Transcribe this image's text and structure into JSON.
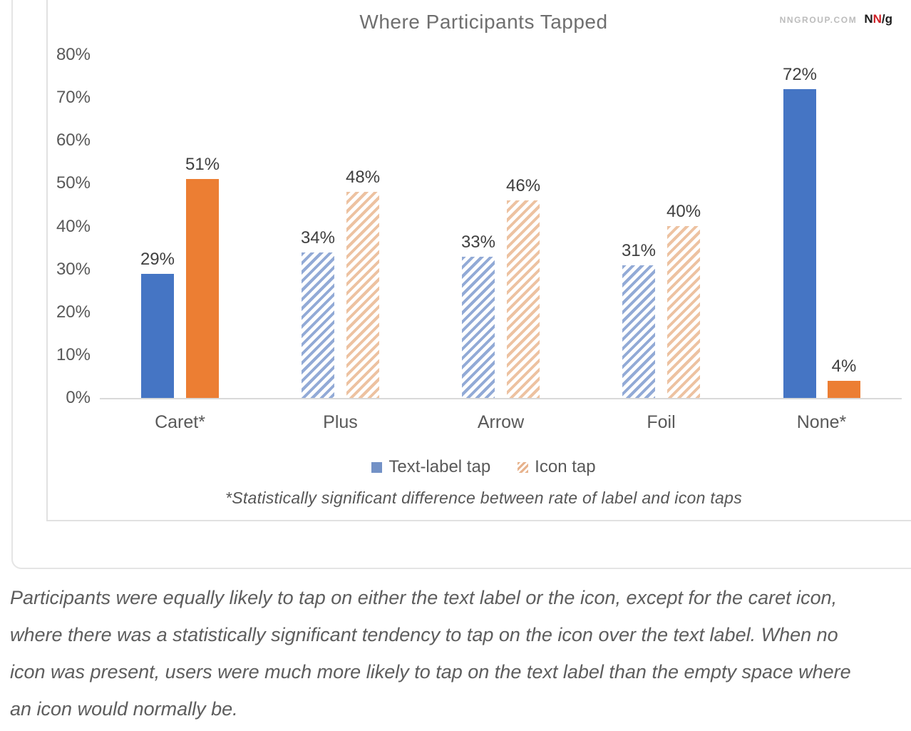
{
  "chart": {
    "title": "Where Participants Tapped",
    "brand": {
      "site": "NNGROUP.COM",
      "n1": "N",
      "n2": "N",
      "slash_g": "/g"
    },
    "footnote": "*Statistically significant difference between rate of label and icon taps"
  },
  "chart_data": {
    "type": "bar",
    "title": "Where Participants Tapped",
    "categories": [
      "Caret*",
      "Plus",
      "Arrow",
      "Foil",
      "None*"
    ],
    "series": [
      {
        "name": "Text-label tap",
        "values": [
          29,
          34,
          33,
          31,
          72
        ]
      },
      {
        "name": "Icon tap",
        "values": [
          51,
          48,
          46,
          40,
          4
        ]
      }
    ],
    "solid_categories": [
      true,
      false,
      false,
      false,
      true
    ],
    "value_suffix": "%",
    "ylim": [
      0,
      80
    ],
    "yticks": [
      "0%",
      "10%",
      "20%",
      "30%",
      "40%",
      "50%",
      "60%",
      "70%",
      "80%"
    ],
    "grid": false,
    "legend_position": "bottom",
    "colors": {
      "series1_solid": "#4575c4",
      "series2_solid": "#ec7e33",
      "series1_hatch": "#92aad6",
      "series2_hatch": "#edc2a1"
    }
  },
  "caption": {
    "lines": [
      "Participants were equally likely to tap on either the text label or the icon, except for the caret icon,",
      "where there was a statistically significant tendency to tap on the icon over the text label. When no",
      "icon was present, users were much more likely to tap on the text label than the empty space where",
      "an icon would normally be."
    ]
  }
}
